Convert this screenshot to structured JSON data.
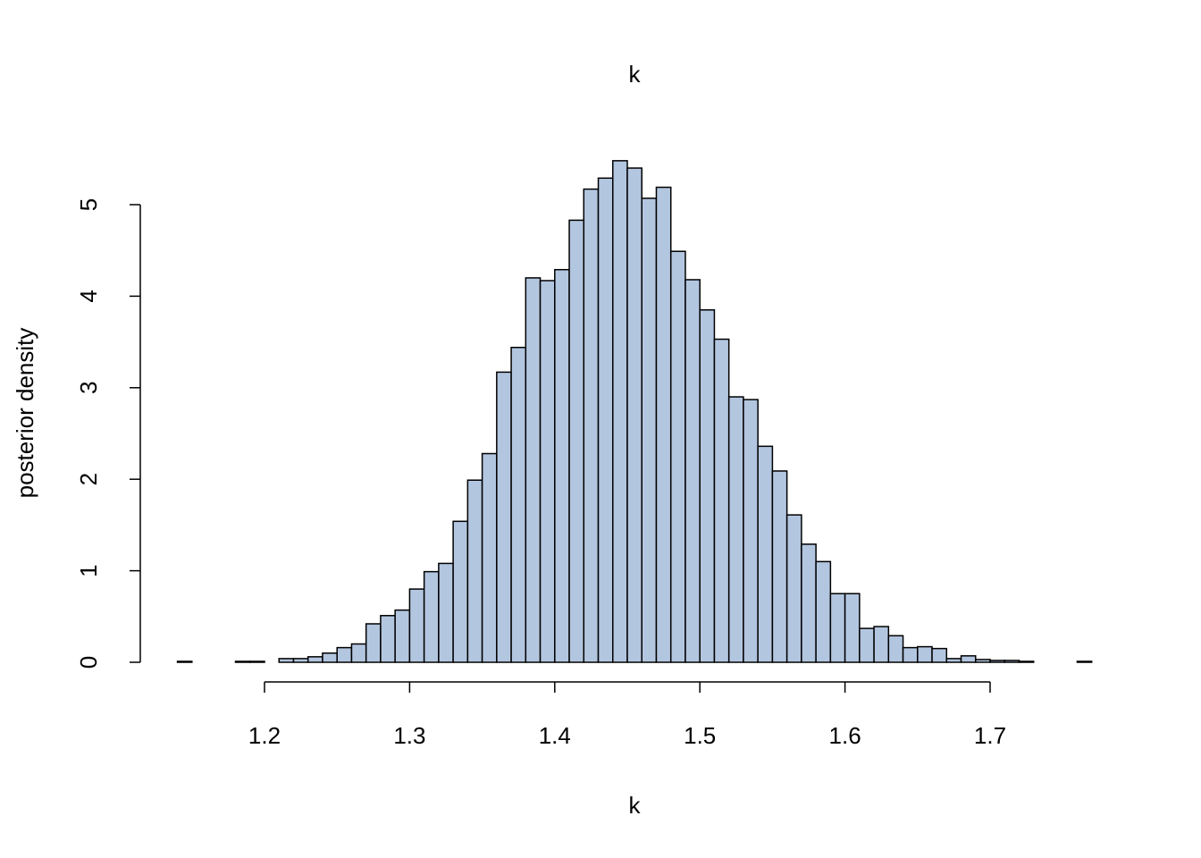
{
  "chart_data": {
    "type": "bar",
    "subtype": "histogram",
    "title": "k",
    "xlabel": "k",
    "ylabel": "posterior density",
    "bar_color": "#b3c6e0",
    "edge_color": "#000000",
    "bin_start": 1.14,
    "bin_width": 0.01,
    "values": [
      0.01,
      0,
      0,
      0,
      0.01,
      0.01,
      0,
      0.04,
      0.04,
      0.06,
      0.1,
      0.16,
      0.2,
      0.42,
      0.51,
      0.57,
      0.8,
      0.99,
      1.08,
      1.54,
      1.99,
      2.28,
      3.17,
      3.44,
      4.2,
      4.17,
      4.29,
      4.83,
      5.17,
      5.29,
      5.48,
      5.4,
      5.07,
      5.19,
      4.49,
      4.18,
      3.85,
      3.53,
      2.9,
      2.87,
      2.36,
      2.09,
      1.61,
      1.29,
      1.1,
      0.75,
      0.75,
      0.37,
      0.39,
      0.29,
      0.16,
      0.17,
      0.15,
      0.04,
      0.07,
      0.03,
      0.02,
      0.02,
      0.01,
      0,
      0,
      0,
      0.01
    ],
    "xticks": [
      "1.2",
      "1.3",
      "1.4",
      "1.5",
      "1.6",
      "1.7"
    ],
    "yticks": [
      "0",
      "1",
      "2",
      "3",
      "4",
      "5"
    ],
    "grid": false
  }
}
